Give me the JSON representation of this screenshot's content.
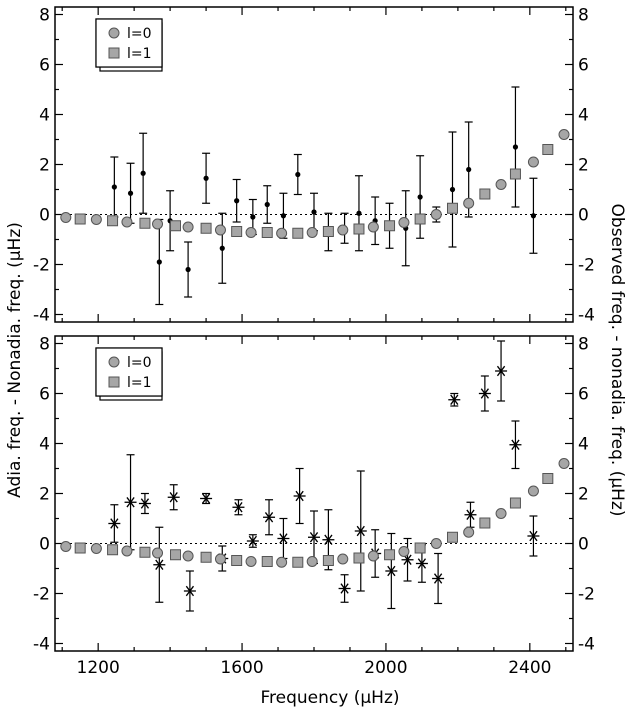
{
  "chart_data": [
    {
      "type": "scatter",
      "panel": "top",
      "xlim": [
        1080,
        2520
      ],
      "ylim": [
        -4.3,
        8.3
      ],
      "x_ticks": [
        1200,
        1600,
        2000,
        2400
      ],
      "y_ticks": [
        -4,
        -2,
        0,
        2,
        4,
        6,
        8
      ],
      "y_tick_labels": [
        "-4",
        "-2",
        "0",
        "2",
        "4",
        "6",
        "8"
      ],
      "legend": {
        "placement": "top-left",
        "entries": [
          "l=0",
          "l=1"
        ]
      },
      "zero_line": "dotted",
      "series": [
        {
          "name": "l=0",
          "marker": "circle",
          "x": [
            1110,
            1195,
            1280,
            1365,
            1450,
            1540,
            1625,
            1710,
            1795,
            1880,
            1965,
            2050,
            2140,
            2230,
            2320,
            2410,
            2495
          ],
          "y": [
            -0.12,
            -0.2,
            -0.3,
            -0.38,
            -0.5,
            -0.62,
            -0.72,
            -0.75,
            -0.72,
            -0.62,
            -0.5,
            -0.32,
            0.0,
            0.45,
            1.2,
            2.1,
            3.2
          ]
        },
        {
          "name": "l=1",
          "marker": "square",
          "x": [
            1150,
            1240,
            1330,
            1415,
            1500,
            1585,
            1670,
            1755,
            1840,
            1925,
            2010,
            2095,
            2185,
            2275,
            2360,
            2450
          ],
          "y": [
            -0.18,
            -0.25,
            -0.35,
            -0.45,
            -0.55,
            -0.68,
            -0.72,
            -0.75,
            -0.68,
            -0.58,
            -0.45,
            -0.18,
            0.25,
            0.82,
            1.62,
            2.6
          ]
        },
        {
          "marker": "dot-errorbar",
          "x": [
            1245,
            1290,
            1325,
            1370,
            1400,
            1450,
            1500,
            1545,
            1585,
            1630,
            1670,
            1715,
            1755,
            1800,
            1840,
            1885,
            1925,
            1970,
            2010,
            2055,
            2095,
            2140,
            2185,
            2230,
            2360,
            2410
          ],
          "y": [
            1.1,
            0.85,
            1.65,
            -1.9,
            -0.25,
            -2.2,
            1.45,
            -1.35,
            0.55,
            -0.1,
            0.4,
            -0.05,
            1.6,
            0.1,
            -0.7,
            -0.55,
            0.05,
            -0.25,
            -0.45,
            -0.55,
            0.7,
            0.0,
            1.0,
            1.8,
            2.7,
            -0.05
          ],
          "err": [
            1.2,
            1.2,
            1.6,
            1.7,
            1.2,
            1.1,
            1.0,
            1.4,
            0.85,
            0.7,
            0.75,
            0.9,
            0.8,
            0.75,
            0.75,
            0.6,
            1.5,
            0.95,
            0.9,
            1.5,
            1.65,
            0.3,
            2.3,
            1.9,
            2.4,
            1.5
          ]
        }
      ]
    },
    {
      "type": "scatter",
      "panel": "bottom",
      "xlim": [
        1080,
        2520
      ],
      "ylim": [
        -4.3,
        8.3
      ],
      "x_ticks": [
        1200,
        1600,
        2000,
        2400
      ],
      "x_tick_labels": [
        "1200",
        "1600",
        "2000",
        "2400"
      ],
      "y_ticks": [
        -4,
        -2,
        0,
        2,
        4,
        6,
        8
      ],
      "y_tick_labels": [
        "-4",
        "-2",
        "0",
        "2",
        "4",
        "6",
        "8"
      ],
      "xlabel": "Frequency (µHz)",
      "legend": {
        "placement": "top-left",
        "entries": [
          "l=0",
          "l=1"
        ]
      },
      "zero_line": "dotted",
      "series": [
        {
          "name": "l=0",
          "marker": "circle",
          "x": [
            1110,
            1195,
            1280,
            1365,
            1450,
            1540,
            1625,
            1710,
            1795,
            1880,
            1965,
            2050,
            2140,
            2230,
            2320,
            2410,
            2495
          ],
          "y": [
            -0.12,
            -0.2,
            -0.3,
            -0.38,
            -0.5,
            -0.62,
            -0.72,
            -0.75,
            -0.72,
            -0.62,
            -0.5,
            -0.32,
            0.0,
            0.45,
            1.2,
            2.1,
            3.2
          ]
        },
        {
          "name": "l=1",
          "marker": "square",
          "x": [
            1150,
            1240,
            1330,
            1415,
            1500,
            1585,
            1670,
            1755,
            1840,
            1925,
            2010,
            2095,
            2185,
            2275,
            2360,
            2450
          ],
          "y": [
            -0.18,
            -0.25,
            -0.35,
            -0.45,
            -0.55,
            -0.68,
            -0.72,
            -0.75,
            -0.68,
            -0.58,
            -0.45,
            -0.18,
            0.25,
            0.82,
            1.62,
            2.6
          ]
        },
        {
          "marker": "asterisk-errorbar",
          "x": [
            1245,
            1290,
            1330,
            1370,
            1410,
            1455,
            1500,
            1545,
            1590,
            1630,
            1675,
            1715,
            1760,
            1800,
            1840,
            1885,
            1930,
            1970,
            2015,
            2060,
            2100,
            2145,
            2190,
            2235,
            2275,
            2320,
            2360,
            2410
          ],
          "y": [
            0.8,
            1.65,
            1.6,
            -0.85,
            1.85,
            -1.9,
            1.8,
            -0.6,
            1.45,
            0.1,
            1.05,
            0.2,
            1.9,
            0.25,
            0.15,
            -1.8,
            0.5,
            -0.4,
            -1.1,
            -0.65,
            -0.8,
            -1.4,
            5.75,
            1.15,
            6.0,
            6.9,
            3.95,
            0.3
          ],
          "err": [
            0.75,
            1.9,
            0.4,
            1.5,
            0.5,
            0.8,
            0.2,
            0.5,
            0.3,
            0.25,
            0.7,
            0.8,
            1.1,
            1.05,
            1.2,
            0.55,
            2.4,
            0.95,
            1.5,
            0.85,
            0.75,
            1.0,
            0.25,
            0.5,
            0.7,
            1.2,
            0.95,
            0.8
          ]
        }
      ]
    }
  ],
  "labels": {
    "xlabel": "Frequency (µHz)",
    "ylabel_left": "Adia. freq. - Nonadia. freq.  (µHz)",
    "ylabel_right": "Observed freq. - nonadia. freq.  (µHz)"
  }
}
